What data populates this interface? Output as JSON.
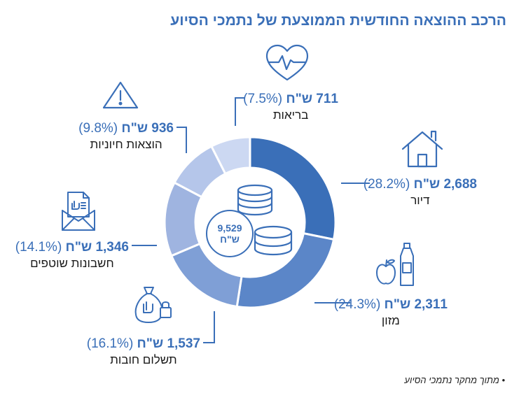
{
  "title": "הרכב ההוצאה החודשית הממוצעת של נתמכי הסיוע",
  "note": "• מתוך מחקר נתמכי הסיוע",
  "colors": {
    "accent": "#3a6fb8",
    "slices": [
      "#3a6fb8",
      "#5b86c8",
      "#7f9fd6",
      "#9fb4e0",
      "#b5c6ea",
      "#ccd8f2"
    ]
  },
  "currency": "ש\"ח",
  "center": {
    "total": "9,529",
    "currency": "ש\"ח"
  },
  "icons": {
    "health": "heart-pulse-icon",
    "housing": "house-icon",
    "food": "apple-bottle-icon",
    "debt": "money-bag-lock-icon",
    "bills": "envelope-bill-icon",
    "essential": "warning-triangle-icon",
    "center": "coin-stacks-icon"
  },
  "chart_data": {
    "type": "pie",
    "title": "הרכב ההוצאה החודשית הממוצעת של נתמכי הסיוע",
    "categories": [
      "דיור",
      "מזון",
      "תשלום חובות",
      "חשבונות שוטפים",
      "הוצאות חיוניות",
      "בריאות"
    ],
    "values": [
      2688,
      2311,
      1537,
      1346,
      936,
      711
    ],
    "percentages": [
      28.2,
      24.3,
      16.1,
      14.1,
      9.8,
      7.5
    ],
    "labels": {
      "housing": {
        "value": "2,688",
        "pct": "(28.2%)",
        "name": "דיור"
      },
      "food": {
        "value": "2,311",
        "pct": "(24.3%)",
        "name": "מזון"
      },
      "debt": {
        "value": "1,537",
        "pct": "(16.1%)",
        "name": "תשלום חובות"
      },
      "bills": {
        "value": "1,346",
        "pct": "(14.1%)",
        "name": "חשבונות שוטפים"
      },
      "essential": {
        "value": "936",
        "pct": "(9.8%)",
        "name": "הוצאות חיוניות"
      },
      "health": {
        "value": "711",
        "pct": "(7.5%)",
        "name": "בריאות"
      }
    },
    "total": "9,529"
  }
}
